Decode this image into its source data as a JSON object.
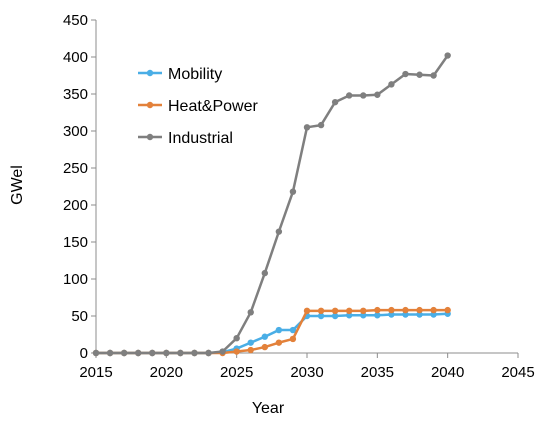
{
  "chart_data": {
    "type": "line",
    "title": "",
    "xlabel": "Year",
    "ylabel": "GWel",
    "xlim": [
      2015,
      2045
    ],
    "ylim": [
      0,
      450
    ],
    "x_ticks": [
      2015,
      2020,
      2025,
      2030,
      2035,
      2040,
      2045
    ],
    "y_ticks": [
      0,
      50,
      100,
      150,
      200,
      250,
      300,
      350,
      400,
      450
    ],
    "grid": false,
    "legend_position": "top-left",
    "x": [
      2015,
      2016,
      2017,
      2018,
      2019,
      2020,
      2021,
      2022,
      2023,
      2024,
      2025,
      2026,
      2027,
      2028,
      2029,
      2030,
      2031,
      2032,
      2033,
      2034,
      2035,
      2036,
      2037,
      2038,
      2039,
      2040
    ],
    "series": [
      {
        "name": "Mobility",
        "color": "#4aaee6",
        "values": [
          0,
          0,
          0,
          0,
          0,
          0,
          0,
          0,
          0,
          1,
          6,
          14,
          22,
          31,
          31,
          50,
          50,
          50,
          51,
          51,
          51,
          52,
          52,
          52,
          52,
          53
        ]
      },
      {
        "name": "Heat&Power",
        "color": "#e3813a",
        "values": [
          0,
          0,
          0,
          0,
          0,
          0,
          0,
          0,
          0,
          0,
          2,
          4,
          8,
          14,
          19,
          57,
          57,
          57,
          57,
          57,
          58,
          58,
          58,
          58,
          58,
          58
        ]
      },
      {
        "name": "Industrial",
        "color": "#7f7f7f",
        "values": [
          0,
          0,
          0,
          0,
          0,
          0,
          0,
          0,
          0,
          2,
          20,
          55,
          108,
          164,
          218,
          305,
          308,
          339,
          348,
          348,
          349,
          363,
          377,
          376,
          375,
          402
        ]
      }
    ]
  }
}
